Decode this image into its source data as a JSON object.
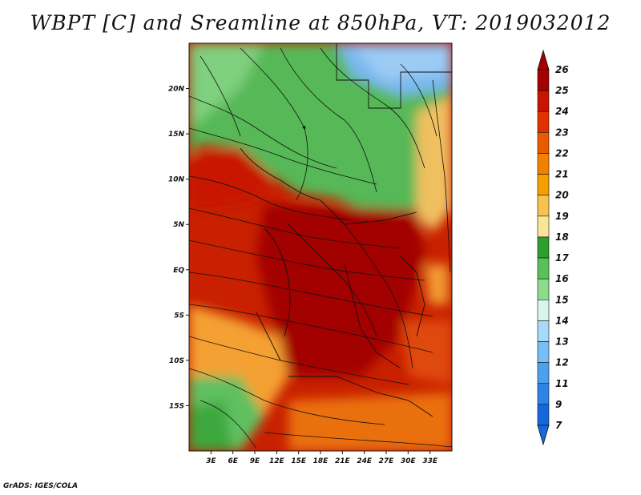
{
  "title": "WBPT [C] and Sreamline at 850hPa, VT: 2019032012",
  "credit": "GrADS: IGES/COLA",
  "map": {
    "lat_labels": [
      "20N",
      "15N",
      "10N",
      "5N",
      "EQ",
      "5S",
      "10S",
      "15S"
    ],
    "lat_values": [
      20,
      15,
      10,
      5,
      0,
      -5,
      -10,
      -15
    ],
    "lon_labels": [
      "3E",
      "6E",
      "9E",
      "12E",
      "15E",
      "18E",
      "21E",
      "24E",
      "27E",
      "30E",
      "33E"
    ],
    "lon_values": [
      3,
      6,
      9,
      12,
      15,
      18,
      21,
      24,
      27,
      30,
      33
    ],
    "lat_range": [
      -20,
      25
    ],
    "lon_range": [
      0,
      36
    ]
  },
  "colorbar": {
    "labels": [
      "26",
      "25",
      "24",
      "23",
      "22",
      "21",
      "20",
      "19",
      "18",
      "17",
      "16",
      "15",
      "14",
      "13",
      "12",
      "11",
      "9",
      "7"
    ],
    "colors": [
      "#a30000",
      "#c81400",
      "#e03200",
      "#ea5a00",
      "#f08200",
      "#f4a000",
      "#f8c250",
      "#fae698",
      "#2e9e2e",
      "#58c258",
      "#8cdc8c",
      "#daf6ea",
      "#a8daf8",
      "#78bef6",
      "#4ca0ee",
      "#2e84e4",
      "#1468dc"
    ]
  },
  "colors": {
    "hot": "#b80800",
    "warm": "#e04a10",
    "mild": "#f0a030",
    "cool_green": "#60c060",
    "blue": "#7ab8f0"
  }
}
